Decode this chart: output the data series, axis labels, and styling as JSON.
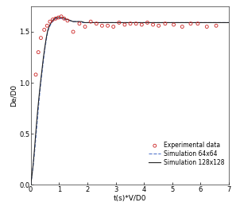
{
  "xlabel": "t(s)*V/D0",
  "ylabel": "De/D0",
  "xlim": [
    0,
    7
  ],
  "ylim": [
    0,
    1.75
  ],
  "yticks": [
    0,
    0.5,
    1.0,
    1.5
  ],
  "xticks": [
    0,
    1,
    2,
    3,
    4,
    5,
    6,
    7
  ],
  "exp_x": [
    0.18,
    0.27,
    0.36,
    0.48,
    0.58,
    0.68,
    0.78,
    0.88,
    0.98,
    1.08,
    1.18,
    1.3,
    1.5,
    1.72,
    1.92,
    2.12,
    2.32,
    2.52,
    2.72,
    2.92,
    3.12,
    3.32,
    3.52,
    3.72,
    3.92,
    4.12,
    4.32,
    4.52,
    4.75,
    5.05,
    5.35,
    5.65,
    5.9,
    6.22,
    6.55
  ],
  "exp_y": [
    1.08,
    1.3,
    1.44,
    1.52,
    1.56,
    1.6,
    1.62,
    1.63,
    1.64,
    1.65,
    1.63,
    1.61,
    1.5,
    1.58,
    1.55,
    1.6,
    1.58,
    1.56,
    1.56,
    1.55,
    1.59,
    1.57,
    1.58,
    1.58,
    1.57,
    1.59,
    1.57,
    1.56,
    1.58,
    1.57,
    1.55,
    1.58,
    1.58,
    1.55,
    1.56
  ],
  "sim64_x": [
    0.0,
    0.05,
    0.1,
    0.15,
    0.2,
    0.25,
    0.3,
    0.35,
    0.4,
    0.45,
    0.5,
    0.55,
    0.6,
    0.65,
    0.7,
    0.75,
    0.8,
    0.85,
    0.9,
    0.95,
    1.0,
    1.1,
    1.2,
    1.3,
    1.4,
    1.5,
    1.6,
    1.7,
    1.8,
    1.9,
    2.0,
    2.2,
    2.4,
    2.6,
    2.8,
    3.0,
    3.2,
    3.5,
    3.8,
    4.0,
    4.5,
    5.0,
    5.5,
    6.0,
    6.5,
    7.0
  ],
  "sim64_y": [
    0.0,
    0.1,
    0.22,
    0.36,
    0.52,
    0.68,
    0.84,
    0.98,
    1.1,
    1.22,
    1.33,
    1.42,
    1.5,
    1.54,
    1.57,
    1.59,
    1.61,
    1.62,
    1.63,
    1.63,
    1.63,
    1.63,
    1.62,
    1.62,
    1.61,
    1.6,
    1.6,
    1.6,
    1.59,
    1.59,
    1.59,
    1.59,
    1.59,
    1.59,
    1.59,
    1.59,
    1.59,
    1.59,
    1.59,
    1.59,
    1.59,
    1.59,
    1.59,
    1.59,
    1.59,
    1.59
  ],
  "sim128_x": [
    0.0,
    0.04,
    0.08,
    0.12,
    0.16,
    0.2,
    0.25,
    0.3,
    0.35,
    0.4,
    0.45,
    0.5,
    0.55,
    0.6,
    0.65,
    0.7,
    0.75,
    0.8,
    0.85,
    0.9,
    0.95,
    1.0,
    1.1,
    1.2,
    1.3,
    1.4,
    1.5,
    1.6,
    1.7,
    1.8,
    1.9,
    2.0,
    2.2,
    2.4,
    2.6,
    2.8,
    3.0,
    3.2,
    3.5,
    3.8,
    4.0,
    4.5,
    5.0,
    5.5,
    6.0,
    6.5,
    7.0
  ],
  "sim128_y": [
    0.0,
    0.08,
    0.18,
    0.3,
    0.44,
    0.58,
    0.74,
    0.88,
    1.01,
    1.13,
    1.25,
    1.35,
    1.44,
    1.51,
    1.55,
    1.58,
    1.6,
    1.62,
    1.63,
    1.64,
    1.64,
    1.64,
    1.64,
    1.63,
    1.62,
    1.61,
    1.6,
    1.6,
    1.6,
    1.6,
    1.59,
    1.59,
    1.59,
    1.59,
    1.59,
    1.59,
    1.59,
    1.59,
    1.59,
    1.59,
    1.59,
    1.59,
    1.59,
    1.59,
    1.59,
    1.59,
    1.59
  ],
  "exp_color": "#cc2222",
  "sim64_color": "#5577cc",
  "sim128_color": "#222222",
  "legend_exp": "Experimental data",
  "legend_64": "Simulation 64x64",
  "legend_128": "Simulation 128x128",
  "bg_color": "#ffffff",
  "fontsize_label": 6.5,
  "fontsize_tick": 6,
  "fontsize_legend": 5.5
}
